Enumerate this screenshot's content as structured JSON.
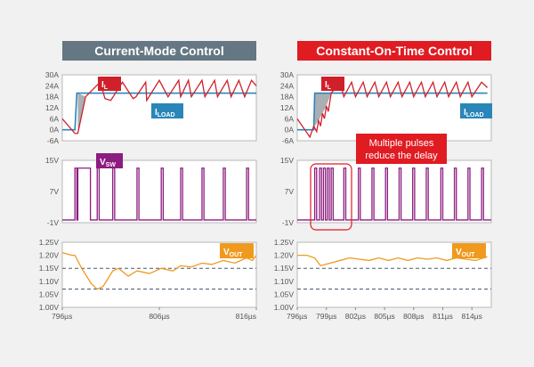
{
  "titles": {
    "left": "Current-Mode Control",
    "right": "Constant-On-Time Control"
  },
  "colors": {
    "left_banner": "#647782",
    "right_banner": "#e01b22",
    "inductor_current": "#d0202a",
    "load_current": "#2a86b8",
    "switch_node": "#8c1c7f",
    "output_voltage": "#ef9a1e",
    "ref_lines": "#475a70",
    "shade": "#9aa1a6"
  },
  "labels": {
    "il": {
      "main": "I",
      "sub": "L"
    },
    "iload": {
      "main": "I",
      "sub": "LOAD"
    },
    "vsw": {
      "main": "V",
      "sub": "SW"
    },
    "vout": {
      "main": "V",
      "sub": "OUT"
    },
    "annotation": [
      "Multiple pulses",
      "reduce the delay"
    ]
  },
  "chart_data": [
    {
      "panel": "left",
      "type": "line",
      "x_ticks": [
        "796µs",
        "806µs",
        "816µs"
      ],
      "x_tick_values": [
        796,
        806,
        816
      ],
      "current": {
        "y_ticks": [
          "30A",
          "24A",
          "18A",
          "12A",
          "6A",
          "0A",
          "-6A"
        ],
        "ylim": [
          -6,
          30
        ],
        "series": [
          {
            "name": "IL",
            "x": [
              796,
              797.3,
              797.6,
              798.4,
              799.9,
              800.4,
              801,
              802.2,
              803.3,
              803.6,
              804.6,
              804.7,
              806,
              806.9,
              808,
              808.2,
              809,
              809.3,
              810.4,
              810.7,
              811.7,
              812,
              813,
              813.4,
              814.2,
              814.8,
              815.5,
              816
            ],
            "y": [
              6,
              -2,
              -2,
              18,
              26,
              17,
              16,
              26,
              17,
              18,
              26,
              16,
              27,
              18,
              27,
              18,
              27,
              18,
              27,
              18,
              27,
              18,
              27,
              18,
              27,
              18,
              27,
              24
            ]
          },
          {
            "name": "ILOAD",
            "x": [
              796,
              797.3,
              797.5,
              816
            ],
            "y": [
              0,
              0,
              20,
              20
            ]
          }
        ]
      },
      "switch": {
        "y_ticks": [
          "15V",
          "7V",
          "-1V"
        ],
        "ylim": [
          -1,
          15
        ],
        "pulses": [
          [
            797.3,
            797.5
          ],
          [
            797.6,
            798.9
          ],
          [
            799.6,
            799.8
          ],
          [
            801.2,
            801.4
          ],
          [
            803.7,
            803.9
          ],
          [
            806.2,
            806.4
          ],
          [
            808.2,
            808.4
          ],
          [
            810.4,
            810.6
          ],
          [
            812.6,
            812.8
          ],
          [
            815.0,
            815.2
          ]
        ]
      },
      "vout": {
        "y_ticks": [
          "1.25V",
          "1.20V",
          "1.15V",
          "1.10V",
          "1.05V",
          "1.00V"
        ],
        "ylim": [
          1.0,
          1.25
        ],
        "dashed_refs": [
          1.15,
          1.07
        ],
        "series": [
          {
            "name": "VOUT",
            "x": [
              796,
              797,
              797.3,
              798,
              799,
              799.6,
              800.2,
              801.2,
              801.8,
              802.8,
              803.7,
              805,
              806.2,
              807.4,
              808.2,
              809.3,
              810.4,
              811.4,
              812.6,
              813.8,
              815,
              815.6,
              816
            ],
            "y": [
              1.21,
              1.2,
              1.2,
              1.15,
              1.09,
              1.07,
              1.08,
              1.14,
              1.15,
              1.12,
              1.14,
              1.13,
              1.15,
              1.14,
              1.16,
              1.155,
              1.17,
              1.165,
              1.18,
              1.17,
              1.19,
              1.18,
              1.2
            ]
          }
        ]
      }
    },
    {
      "panel": "right",
      "type": "line",
      "x_ticks": [
        "796µs",
        "799µs",
        "802µs",
        "805µs",
        "808µs",
        "811µs",
        "814µs"
      ],
      "x_tick_values": [
        796,
        799,
        802,
        805,
        808,
        811,
        814
      ],
      "current": {
        "y_ticks": [
          "30A",
          "24A",
          "18A",
          "12A",
          "6A",
          "0A",
          "-6A"
        ],
        "ylim": [
          -6,
          30
        ],
        "series": [
          {
            "name": "IL",
            "x": [
              796,
              797.3,
              797.7,
              798,
              798.2,
              798.4,
              798.6,
              798.8,
              799,
              799.2,
              799.5,
              800.4,
              800.8,
              801.6,
              802,
              802.8,
              803.2,
              804,
              804.4,
              805.2,
              805.6,
              806.4,
              806.8,
              807.6,
              808,
              808.8,
              809.2,
              810,
              810.4,
              811.2,
              811.6,
              812.4,
              812.8,
              813.6,
              814,
              815,
              815.6
            ],
            "y": [
              6,
              -4,
              2,
              -1,
              5,
              2,
              9,
              6,
              13,
              10,
              20,
              26,
              18,
              26,
              18,
              26,
              18,
              26,
              18,
              26,
              18,
              26,
              18,
              26,
              18,
              26,
              18,
              26,
              18,
              26,
              18,
              26,
              18,
              26,
              18,
              26,
              23
            ]
          },
          {
            "name": "ILOAD",
            "x": [
              796,
              797.7,
              797.8,
              815.6
            ],
            "y": [
              0,
              0,
              20,
              20
            ]
          }
        ]
      },
      "switch": {
        "y_ticks": [
          "15V",
          "7V",
          "-1V"
        ],
        "ylim": [
          -1,
          15
        ],
        "pulses": [
          [
            797.8,
            798
          ],
          [
            798.3,
            798.5
          ],
          [
            798.7,
            798.9
          ],
          [
            799.1,
            799.3
          ],
          [
            799.5,
            799.7
          ],
          [
            800.8,
            801
          ],
          [
            802.3,
            802.5
          ],
          [
            803.7,
            803.9
          ],
          [
            805.1,
            805.3
          ],
          [
            806.5,
            806.7
          ],
          [
            807.9,
            808.1
          ],
          [
            809.3,
            809.5
          ],
          [
            810.8,
            811
          ],
          [
            812.2,
            812.4
          ],
          [
            813.6,
            813.8
          ],
          [
            815.0,
            815.2
          ]
        ]
      },
      "vout": {
        "y_ticks": [
          "1.25V",
          "1.20V",
          "1.15V",
          "1.10V",
          "1.05V",
          "1.00V"
        ],
        "ylim": [
          1.0,
          1.25
        ],
        "dashed_refs": [
          1.15,
          1.07
        ],
        "series": [
          {
            "name": "VOUT",
            "x": [
              796,
              797,
              797.8,
              798.4,
              799.4,
              800.4,
              801.4,
              802.4,
              803.4,
              804.4,
              805.4,
              806.4,
              807.4,
              808.4,
              809.4,
              810.4,
              811.4,
              812.4,
              813.4,
              814.4,
              815.2,
              815.6
            ],
            "y": [
              1.2,
              1.2,
              1.19,
              1.16,
              1.17,
              1.18,
              1.19,
              1.185,
              1.18,
              1.19,
              1.18,
              1.19,
              1.18,
              1.19,
              1.185,
              1.19,
              1.18,
              1.19,
              1.185,
              1.18,
              1.19,
              1.195
            ]
          }
        ]
      }
    }
  ]
}
